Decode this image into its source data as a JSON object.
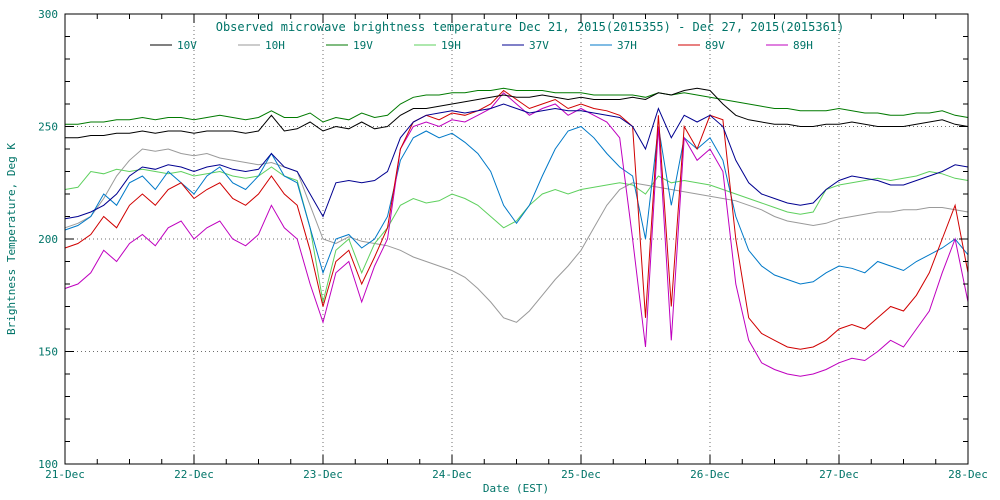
{
  "figure": {
    "text_color": "#007468",
    "frame_color": "#000000",
    "grid_color": "#6e6e6e",
    "background": "#ffffff"
  },
  "chart_data": {
    "type": "line",
    "title": "Observed microwave brightness temperature Dec 21, 2015(2015355) - Dec 27, 2015(2015361)",
    "xlabel": "Date (EST)",
    "ylabel": "Brightness Temperature, Deg K",
    "ylim": [
      100,
      300
    ],
    "y_ticks": [
      100,
      150,
      200,
      250,
      300
    ],
    "y_gridlines": [
      150,
      200,
      250
    ],
    "x_range_days": [
      0,
      7
    ],
    "x_tick_labels": [
      "21-Dec",
      "22-Dec",
      "23-Dec",
      "24-Dec",
      "25-Dec",
      "26-Dec",
      "27-Dec",
      "28-Dec"
    ],
    "grid": "dotted",
    "legend_position": "top",
    "x": [
      0,
      0.1,
      0.2,
      0.3,
      0.4,
      0.5,
      0.6,
      0.7,
      0.8,
      0.9,
      1,
      1.1,
      1.2,
      1.3,
      1.4,
      1.5,
      1.6,
      1.7,
      1.8,
      1.9,
      2,
      2.1,
      2.2,
      2.3,
      2.4,
      2.5,
      2.6,
      2.7,
      2.8,
      2.9,
      3,
      3.1,
      3.2,
      3.3,
      3.4,
      3.5,
      3.6,
      3.7,
      3.8,
      3.9,
      4,
      4.1,
      4.2,
      4.3,
      4.4,
      4.5,
      4.6,
      4.7,
      4.8,
      4.9,
      5,
      5.1,
      5.2,
      5.3,
      5.4,
      5.5,
      5.6,
      5.7,
      5.8,
      5.9,
      6,
      6.1,
      6.2,
      6.3,
      6.4,
      6.5,
      6.6,
      6.7,
      6.8,
      6.9,
      7
    ],
    "series": [
      {
        "name": "10V",
        "color": "#000000",
        "values": [
          245,
          245,
          246,
          246,
          247,
          247,
          248,
          247,
          248,
          248,
          247,
          248,
          248,
          248,
          247,
          248,
          255,
          248,
          249,
          252,
          248,
          250,
          249,
          252,
          249,
          250,
          255,
          258,
          258,
          259,
          260,
          261,
          262,
          263,
          264,
          263,
          263,
          264,
          263,
          262,
          263,
          262,
          262,
          262,
          263,
          262,
          265,
          264,
          266,
          267,
          266,
          260,
          255,
          253,
          252,
          251,
          251,
          250,
          250,
          251,
          251,
          252,
          251,
          250,
          250,
          250,
          251,
          252,
          253,
          251,
          250
        ]
      },
      {
        "name": "10H",
        "color": "#9a9a9a",
        "values": [
          205,
          207,
          210,
          218,
          228,
          235,
          240,
          239,
          240,
          238,
          237,
          238,
          236,
          235,
          234,
          233,
          234,
          232,
          230,
          215,
          200,
          198,
          201,
          199,
          198,
          197,
          195,
          192,
          190,
          188,
          186,
          183,
          178,
          172,
          165,
          163,
          168,
          175,
          182,
          188,
          195,
          205,
          215,
          222,
          225,
          224,
          223,
          222,
          221,
          220,
          219,
          218,
          217,
          215,
          213,
          210,
          208,
          207,
          206,
          207,
          209,
          210,
          211,
          212,
          212,
          213,
          213,
          214,
          214,
          213,
          212
        ]
      },
      {
        "name": "19V",
        "color": "#007a00",
        "values": [
          251,
          251,
          252,
          252,
          253,
          253,
          254,
          253,
          254,
          254,
          253,
          254,
          255,
          254,
          253,
          254,
          257,
          254,
          254,
          256,
          252,
          254,
          253,
          256,
          254,
          255,
          260,
          263,
          264,
          264,
          265,
          265,
          266,
          266,
          267,
          266,
          266,
          266,
          265,
          265,
          265,
          264,
          264,
          264,
          264,
          263,
          265,
          264,
          265,
          264,
          263,
          262,
          261,
          260,
          259,
          258,
          258,
          257,
          257,
          257,
          258,
          257,
          256,
          256,
          255,
          255,
          256,
          256,
          257,
          255,
          254
        ]
      },
      {
        "name": "19H",
        "color": "#5ed05e",
        "values": [
          222,
          223,
          230,
          229,
          231,
          230,
          231,
          230,
          229,
          230,
          228,
          229,
          230,
          228,
          227,
          228,
          232,
          228,
          226,
          205,
          172,
          195,
          200,
          185,
          198,
          205,
          215,
          218,
          216,
          217,
          220,
          218,
          215,
          210,
          205,
          208,
          215,
          220,
          222,
          220,
          222,
          223,
          224,
          225,
          224,
          220,
          228,
          225,
          226,
          225,
          224,
          222,
          220,
          218,
          216,
          214,
          212,
          211,
          212,
          222,
          224,
          225,
          226,
          227,
          226,
          227,
          228,
          230,
          229,
          227,
          226
        ]
      },
      {
        "name": "37V",
        "color": "#000090",
        "values": [
          209,
          210,
          212,
          215,
          220,
          228,
          232,
          231,
          233,
          232,
          230,
          232,
          233,
          231,
          230,
          231,
          238,
          232,
          230,
          220,
          210,
          225,
          226,
          225,
          226,
          230,
          245,
          252,
          255,
          256,
          257,
          256,
          257,
          258,
          260,
          258,
          256,
          257,
          258,
          257,
          257,
          256,
          255,
          254,
          250,
          240,
          258,
          245,
          255,
          252,
          255,
          250,
          235,
          225,
          220,
          218,
          216,
          215,
          216,
          222,
          226,
          228,
          227,
          226,
          224,
          224,
          226,
          228,
          230,
          233,
          232
        ]
      },
      {
        "name": "37H",
        "color": "#0079c8",
        "values": [
          204,
          206,
          210,
          220,
          215,
          225,
          228,
          222,
          230,
          225,
          220,
          228,
          232,
          225,
          222,
          228,
          238,
          228,
          225,
          205,
          185,
          200,
          202,
          196,
          200,
          210,
          235,
          245,
          248,
          245,
          247,
          243,
          238,
          230,
          215,
          207,
          215,
          228,
          240,
          248,
          250,
          245,
          238,
          232,
          228,
          200,
          250,
          215,
          245,
          240,
          245,
          235,
          210,
          195,
          188,
          184,
          182,
          180,
          181,
          185,
          188,
          187,
          185,
          190,
          188,
          186,
          190,
          193,
          196,
          200,
          193
        ]
      },
      {
        "name": "89V",
        "color": "#d00000",
        "values": [
          196,
          198,
          202,
          210,
          205,
          215,
          220,
          215,
          222,
          225,
          218,
          222,
          225,
          218,
          215,
          220,
          228,
          220,
          215,
          195,
          170,
          190,
          195,
          180,
          192,
          205,
          240,
          252,
          255,
          253,
          256,
          255,
          257,
          260,
          266,
          262,
          258,
          260,
          262,
          258,
          260,
          258,
          257,
          255,
          250,
          165,
          255,
          170,
          250,
          240,
          255,
          253,
          200,
          165,
          158,
          155,
          152,
          151,
          152,
          155,
          160,
          162,
          160,
          165,
          170,
          168,
          175,
          185,
          200,
          215,
          185
        ]
      },
      {
        "name": "89H",
        "color": "#bf00bf",
        "values": [
          178,
          180,
          185,
          195,
          190,
          198,
          202,
          197,
          205,
          208,
          200,
          205,
          208,
          200,
          197,
          202,
          215,
          205,
          200,
          180,
          163,
          185,
          190,
          172,
          188,
          200,
          240,
          250,
          252,
          250,
          253,
          252,
          255,
          258,
          265,
          260,
          255,
          258,
          260,
          255,
          258,
          255,
          252,
          245,
          200,
          152,
          250,
          155,
          245,
          235,
          240,
          230,
          180,
          155,
          145,
          142,
          140,
          139,
          140,
          142,
          145,
          147,
          146,
          150,
          155,
          152,
          160,
          168,
          185,
          200,
          172
        ]
      }
    ]
  }
}
